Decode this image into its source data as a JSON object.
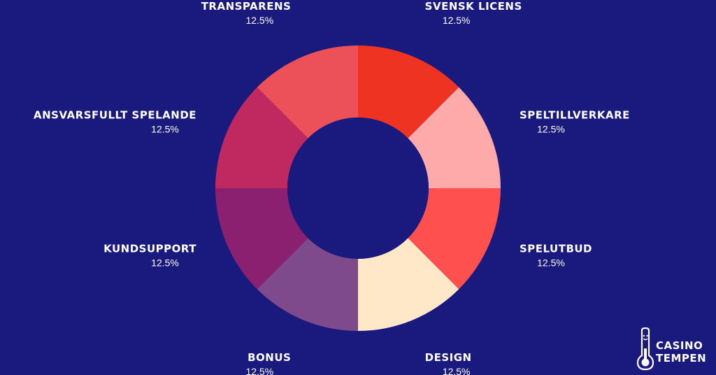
{
  "colors": {
    "background": "#1a1a7e",
    "text": "#ffffff"
  },
  "chart_data": {
    "type": "pie",
    "variant": "donut",
    "title": "",
    "categories": [
      "SVENSK LICENS",
      "SPELTILLVERKARE",
      "SPELUTBUD",
      "DESIGN",
      "BONUS",
      "KUNDSUPPORT",
      "ANSVARSFULLT SPELANDE",
      "TRANSPARENS"
    ],
    "values": [
      12.5,
      12.5,
      12.5,
      12.5,
      12.5,
      12.5,
      12.5,
      12.5
    ],
    "value_labels": [
      "12.5%",
      "12.5%",
      "12.5%",
      "12.5%",
      "12.5%",
      "12.5%",
      "12.5%",
      "12.5%"
    ],
    "colors": [
      "#ee3322",
      "#ffaaaa",
      "#ff5050",
      "#ffe8c8",
      "#7f4a8c",
      "#8c2070",
      "#c02860",
      "#ec5058"
    ],
    "legend": "none"
  },
  "logo": {
    "line1": "CASINO",
    "line2": "TEMPEN",
    "icon": "thermometer-icon"
  }
}
